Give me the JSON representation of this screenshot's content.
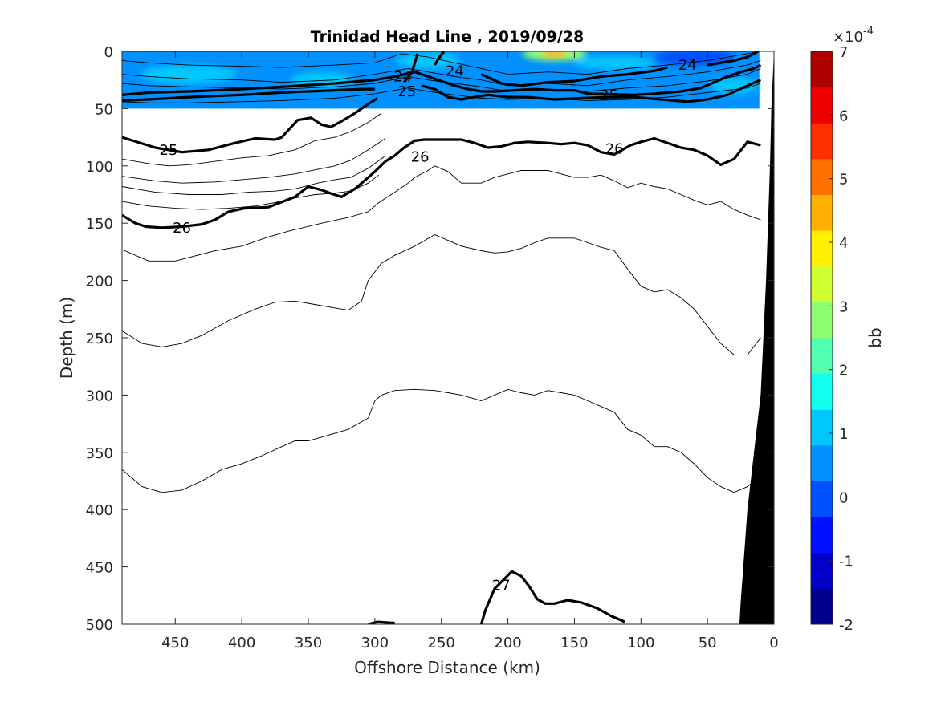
{
  "chart_data": {
    "type": "contour",
    "title": "Trinidad Head Line , 2019/09/28",
    "xlabel": "Offshore Distance (km)",
    "ylabel": "Depth (m)",
    "xlim": [
      490,
      0
    ],
    "ylim": [
      0,
      500
    ],
    "x_direction": "reversed",
    "y_direction": "reversed",
    "x_ticks": [
      "450",
      "400",
      "350",
      "300",
      "250",
      "200",
      "150",
      "100",
      "50",
      "0"
    ],
    "y_ticks": [
      "0",
      "50",
      "100",
      "150",
      "200",
      "250",
      "300",
      "350",
      "400",
      "450",
      "500"
    ],
    "grid": false,
    "colorbar": {
      "label": "bb",
      "multiplier": "×10",
      "exponent": "-4",
      "range": [
        -2,
        7
      ],
      "ticks": [
        "7",
        "6",
        "5",
        "4",
        "3",
        "2",
        "1",
        "0",
        "-1",
        "-2"
      ],
      "colors": [
        "#00008f",
        "#0000c8",
        "#0010ff",
        "#0050ff",
        "#0090ff",
        "#00c8ff",
        "#10ffef",
        "#50ffaf",
        "#90ff6f",
        "#cfff30",
        "#ffef00",
        "#ffb000",
        "#ff7000",
        "#ff3000",
        "#ef0000",
        "#af0000"
      ]
    },
    "color_field": {
      "variable": "bb",
      "depth_range": [
        0,
        50
      ],
      "typical_value_range": [
        0,
        1.5
      ],
      "max_value": 4.2,
      "max_location": {
        "x": 165,
        "y": 2
      }
    },
    "contour_labels": [
      {
        "text": "24",
        "x": 279,
        "y": 22
      },
      {
        "text": "24",
        "x": 240,
        "y": 17
      },
      {
        "text": "24",
        "x": 65,
        "y": 12
      },
      {
        "text": "25",
        "x": 276,
        "y": 35
      },
      {
        "text": "25",
        "x": 124,
        "y": 38
      },
      {
        "text": "25",
        "x": 455,
        "y": 86
      },
      {
        "text": "26",
        "x": 266,
        "y": 92
      },
      {
        "text": "26",
        "x": 120,
        "y": 85
      },
      {
        "text": "26",
        "x": 445,
        "y": 154
      },
      {
        "text": "27",
        "x": 205,
        "y": 466
      }
    ],
    "contours_major": [
      {
        "level": 25,
        "x": [
          490,
          465,
          445,
          425,
          405,
          390,
          375,
          370,
          358,
          348,
          340,
          333,
          325,
          315,
          305,
          298
        ],
        "y": [
          75,
          84,
          88,
          86,
          80,
          76,
          77,
          75,
          60,
          58,
          64,
          66,
          61,
          54,
          46,
          41
        ]
      },
      {
        "level": 26,
        "x": [
          490,
          480,
          472,
          460,
          445,
          430,
          420,
          410,
          398,
          380,
          360,
          350,
          340,
          333,
          325,
          315,
          308,
          300,
          292,
          285,
          278,
          270,
          263,
          250,
          235,
          225,
          215,
          205,
          195,
          185,
          170,
          160,
          150,
          140,
          130,
          120,
          108,
          100,
          90,
          80,
          70,
          60,
          50,
          40,
          30,
          20,
          10
        ],
        "y": [
          143,
          150,
          153,
          154,
          153,
          151,
          147,
          140,
          137,
          136,
          127,
          118,
          121,
          124,
          127,
          120,
          113,
          105,
          96,
          91,
          84,
          78,
          77,
          77,
          77,
          80,
          84,
          83,
          80,
          79,
          80,
          81,
          80,
          82,
          88,
          90,
          82,
          79,
          76,
          80,
          84,
          86,
          91,
          99,
          94,
          79,
          82
        ]
      },
      {
        "level": 27,
        "x": [
          220,
          217,
          210,
          197,
          190,
          184,
          178,
          172,
          165,
          155,
          145,
          133,
          122,
          112
        ],
        "y": [
          500,
          488,
          469,
          454,
          458,
          467,
          478,
          482,
          482,
          479,
          481,
          486,
          493,
          498
        ]
      },
      {
        "level": 27,
        "x": [
          305,
          298,
          285
        ],
        "y": [
          500,
          498,
          499
        ]
      }
    ],
    "contours_minor": [
      {
        "x": [
          490,
          470,
          455,
          440,
          420,
          400,
          380,
          360,
          345,
          330,
          318,
          305,
          295
        ],
        "y": [
          94,
          98,
          100,
          99,
          96,
          93,
          91,
          86,
          78,
          75,
          70,
          62,
          54
        ]
      },
      {
        "x": [
          490,
          465,
          445,
          420,
          400,
          380,
          360,
          343,
          330,
          318,
          305,
          292
        ],
        "y": [
          109,
          113,
          115,
          114,
          112,
          110,
          107,
          103,
          100,
          95,
          86,
          76
        ]
      },
      {
        "x": [
          490,
          465,
          440,
          415,
          395,
          375,
          360,
          343,
          330,
          318,
          305,
          293
        ],
        "y": [
          118,
          123,
          125,
          125,
          123,
          122,
          120,
          115,
          112,
          110,
          102,
          92
        ]
      },
      {
        "x": [
          490,
          470,
          450,
          430,
          410,
          390,
          375,
          360,
          345,
          332,
          318,
          305,
          297
        ],
        "y": [
          131,
          135,
          137,
          138,
          137,
          135,
          132,
          128,
          125,
          124,
          122,
          115,
          108
        ]
      },
      {
        "x": [
          490,
          470,
          450,
          420,
          400,
          380,
          365,
          340,
          320,
          305,
          297,
          285,
          275,
          270,
          260,
          255,
          245,
          235,
          220,
          210,
          200,
          190,
          180,
          170,
          160,
          150,
          140,
          130,
          120,
          110,
          100,
          90,
          80,
          70,
          60,
          50,
          40,
          30,
          20,
          10
        ],
        "y": [
          173,
          183,
          183,
          174,
          170,
          162,
          157,
          150,
          145,
          140,
          132,
          123,
          115,
          110,
          104,
          100,
          105,
          115,
          115,
          110,
          107,
          104,
          104,
          104,
          107,
          110,
          110,
          108,
          113,
          119,
          115,
          118,
          120,
          125,
          130,
          134,
          131,
          138,
          143,
          147
        ]
      },
      {
        "x": [
          490,
          475,
          460,
          445,
          430,
          410,
          390,
          375,
          360,
          340,
          320,
          310,
          305,
          295,
          285,
          270,
          255,
          245,
          235,
          220,
          210,
          200,
          190,
          180,
          170,
          160,
          150,
          140,
          130,
          120,
          110,
          100,
          90,
          80,
          70,
          60,
          50,
          40,
          30,
          20,
          10
        ],
        "y": [
          244,
          255,
          258,
          255,
          248,
          235,
          225,
          219,
          218,
          222,
          226,
          218,
          200,
          185,
          178,
          170,
          160,
          165,
          170,
          174,
          176,
          175,
          172,
          167,
          163,
          163,
          163,
          167,
          171,
          174,
          190,
          205,
          210,
          208,
          215,
          225,
          240,
          255,
          265,
          265,
          250
        ]
      },
      {
        "x": [
          490,
          475,
          460,
          445,
          430,
          415,
          400,
          385,
          370,
          360,
          350,
          335,
          320,
          305,
          300,
          295,
          285,
          270,
          255,
          245,
          235,
          220,
          210,
          200,
          190,
          180,
          170,
          160,
          150,
          140,
          130,
          120,
          110,
          100,
          90,
          80,
          70,
          60,
          50,
          40,
          30,
          20,
          10
        ],
        "y": [
          365,
          380,
          385,
          383,
          375,
          365,
          360,
          353,
          345,
          340,
          340,
          335,
          330,
          320,
          305,
          300,
          296,
          295,
          296,
          298,
          300,
          305,
          300,
          295,
          298,
          300,
          296,
          298,
          300,
          305,
          310,
          315,
          330,
          335,
          345,
          345,
          350,
          360,
          372,
          380,
          385,
          380,
          370
        ]
      }
    ],
    "surface_contours_thin": [
      {
        "x": [
          490,
          470,
          440,
          400,
          370,
          330,
          300,
          280,
          260,
          240,
          220,
          200,
          170,
          140,
          110,
          80,
          50,
          20,
          10
        ],
        "y": [
          8,
          10,
          12,
          13,
          14,
          12,
          10,
          2,
          5,
          10,
          15,
          20,
          18,
          20,
          15,
          12,
          8,
          2,
          0
        ]
      },
      {
        "x": [
          490,
          470,
          440,
          400,
          370,
          330,
          300,
          275,
          260,
          240,
          220,
          200,
          170,
          140,
          110,
          80,
          50,
          20,
          10
        ],
        "y": [
          20,
          22,
          24,
          25,
          27,
          25,
          20,
          15,
          18,
          22,
          25,
          30,
          28,
          30,
          25,
          22,
          18,
          12,
          8
        ]
      },
      {
        "x": [
          490,
          470,
          440,
          400,
          370,
          330,
          300,
          275,
          260,
          240,
          220,
          200,
          170,
          140,
          110,
          80,
          50,
          20,
          10
        ],
        "y": [
          28,
          30,
          31,
          32,
          33,
          31,
          28,
          22,
          25,
          28,
          31,
          35,
          33,
          35,
          32,
          30,
          26,
          20,
          15
        ]
      },
      {
        "x": [
          490,
          470,
          440,
          400,
          370,
          330,
          300,
          275,
          260,
          240,
          220,
          200,
          170,
          140,
          110,
          80,
          50,
          20,
          10
        ],
        "y": [
          44,
          45,
          45,
          44,
          43,
          41,
          37,
          32,
          35,
          38,
          41,
          42,
          41,
          43,
          42,
          40,
          36,
          32,
          28
        ]
      }
    ],
    "surface_contours_bold": [
      {
        "level": 24,
        "x": [
          278,
          272,
          268
        ],
        "y": [
          27,
          18,
          2
        ]
      },
      {
        "level": 24,
        "x": [
          255,
          252,
          248
        ],
        "y": [
          12,
          6,
          0
        ]
      },
      {
        "level": 24,
        "x": [
          220,
          205,
          190,
          170,
          150,
          130,
          110,
          90,
          80
        ],
        "y": [
          20,
          28,
          30,
          27,
          26,
          22,
          20,
          17,
          14
        ]
      },
      {
        "level": 24,
        "x": [
          50,
          40,
          30,
          20,
          12
        ],
        "y": [
          12,
          10,
          8,
          5,
          0
        ]
      },
      {
        "level": 25,
        "x": [
          490,
          470,
          440,
          400,
          370,
          330,
          300,
          285,
          270,
          260,
          250,
          240,
          230,
          220,
          210,
          195,
          180,
          165,
          150,
          140,
          105,
          90,
          70,
          55,
          45,
          35,
          25,
          15,
          10
        ],
        "y": [
          38,
          36,
          35,
          33,
          31,
          28,
          25,
          22,
          18,
          22,
          26,
          30,
          33,
          35,
          35,
          34,
          33,
          34,
          34,
          37,
          38,
          37,
          35,
          32,
          27,
          22,
          18,
          15,
          12
        ]
      },
      {
        "level": 25,
        "x": [
          490,
          470,
          440,
          400,
          370,
          330,
          310,
          300
        ],
        "y": [
          43,
          42,
          40,
          38,
          36,
          34,
          33,
          33
        ]
      },
      {
        "level": 25,
        "x": [
          265,
          255,
          245,
          235,
          225,
          215,
          200,
          185,
          165,
          145,
          125,
          105,
          85,
          65,
          50,
          35,
          20,
          10
        ],
        "y": [
          30,
          33,
          40,
          42,
          40,
          38,
          40,
          40,
          42,
          41,
          40,
          40,
          42,
          44,
          42,
          38,
          30,
          25
        ]
      }
    ],
    "bathymetry_polygon": {
      "color": "#000000",
      "x": [
        0,
        2,
        3,
        6,
        10,
        15,
        20,
        25,
        26,
        0
      ],
      "y": [
        0,
        50,
        100,
        200,
        300,
        350,
        400,
        480,
        500,
        500
      ]
    },
    "bathymetry_white_wedge": {
      "x": [
        10,
        2,
        0,
        10
      ],
      "y": [
        0,
        0,
        5,
        0
      ]
    }
  }
}
